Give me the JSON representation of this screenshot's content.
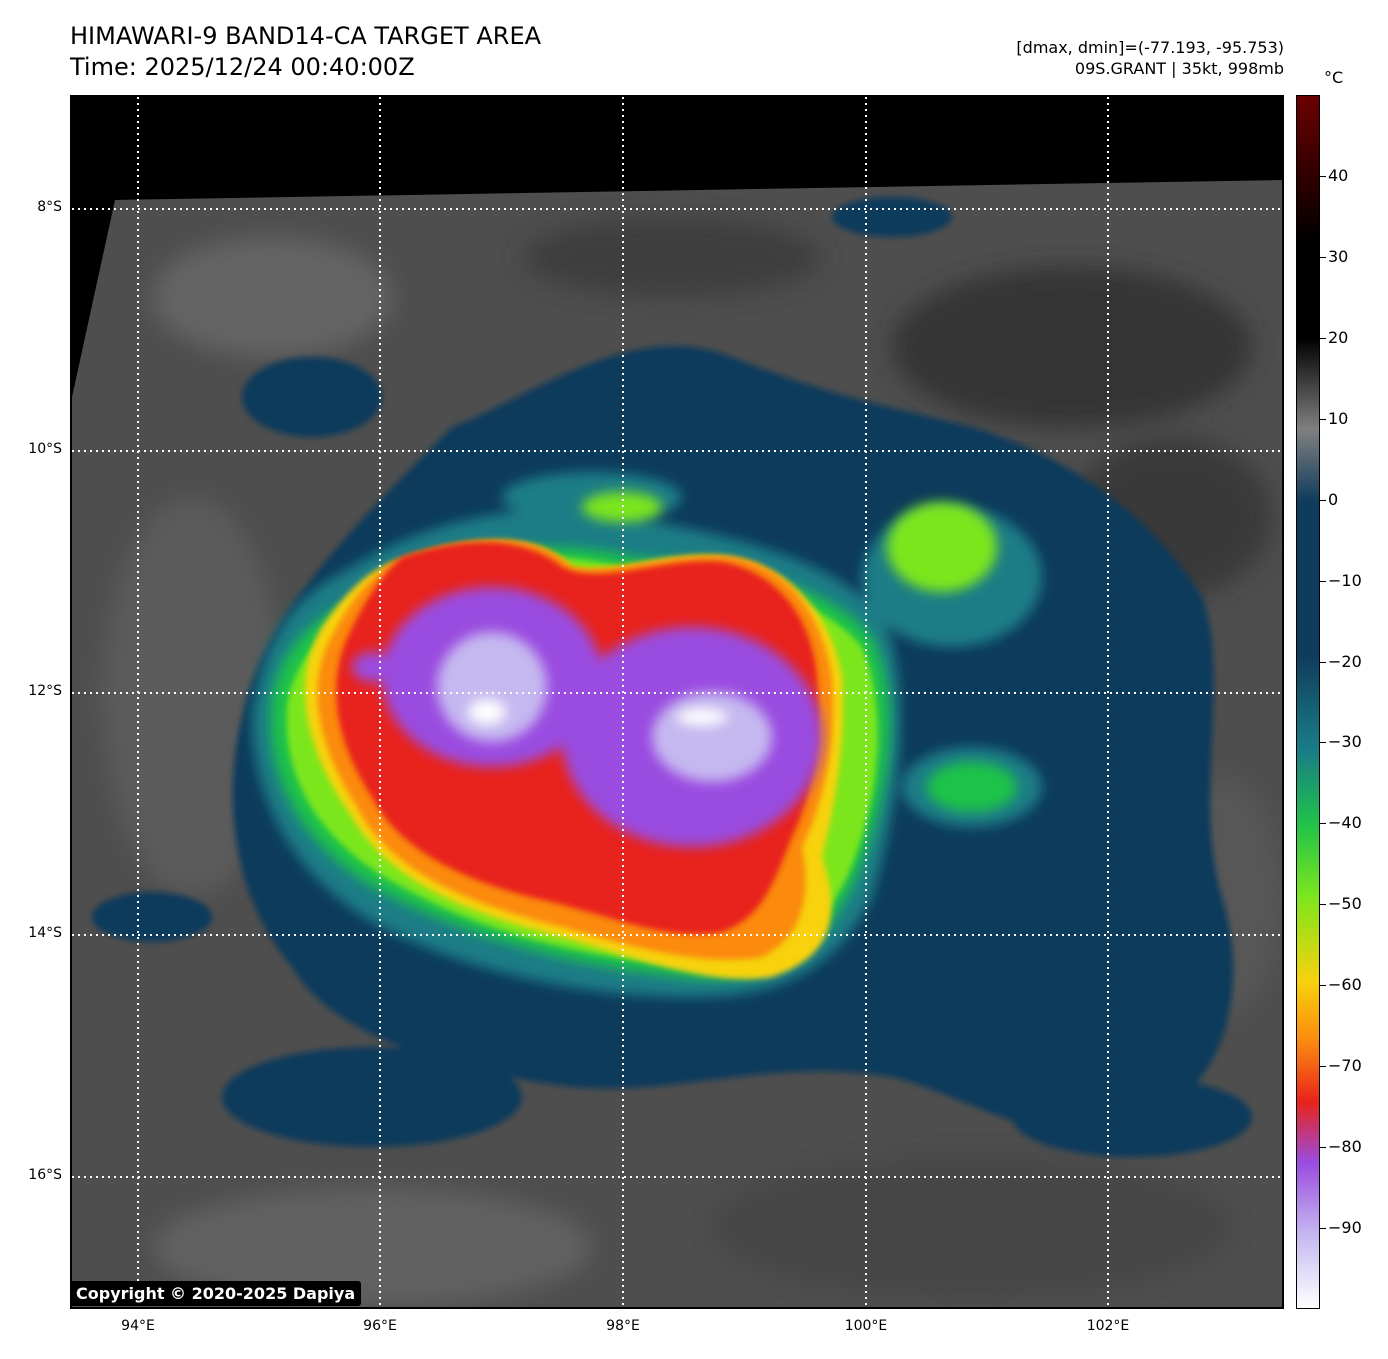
{
  "title": {
    "line1": "HIMAWARI-9 BAND14-CA TARGET AREA",
    "line2": "Time: 2025/12/24 00:40:00Z"
  },
  "info": {
    "range": "[dmax, dmin]=(-77.193, -95.753)",
    "storm": "09S.GRANT | 35kt, 998mb"
  },
  "map": {
    "lat_labels": [
      "8°S",
      "10°S",
      "12°S",
      "14°S",
      "16°S"
    ],
    "lon_labels": [
      "94°E",
      "96°E",
      "98°E",
      "100°E",
      "102°E"
    ],
    "lat_range": [
      -17.0,
      -7.1
    ],
    "lon_range": [
      93.45,
      103.45
    ],
    "grid": "dotted white"
  },
  "colorbar": {
    "unit": "°C",
    "ticks": [
      "40",
      "30",
      "20",
      "10",
      "0",
      "−10",
      "−20",
      "−30",
      "−40",
      "−50",
      "−60",
      "−70",
      "−80",
      "−90"
    ],
    "range": [
      -100,
      50
    ],
    "colors": {
      "darkred": "#6b0000",
      "black": "#000000",
      "gray": "#808080",
      "navy": "#0f3b5c",
      "teal": "#1a7d86",
      "green": "#1fc24a",
      "lime": "#7be61e",
      "yellow": "#f7d20c",
      "orange": "#fb8a10",
      "red": "#e8231a",
      "purple": "#9a4ce0",
      "lavender": "#c5b8f0",
      "white": "#ffffff"
    }
  },
  "copyright": "Copyright © 2020-2025 Dapiya"
}
